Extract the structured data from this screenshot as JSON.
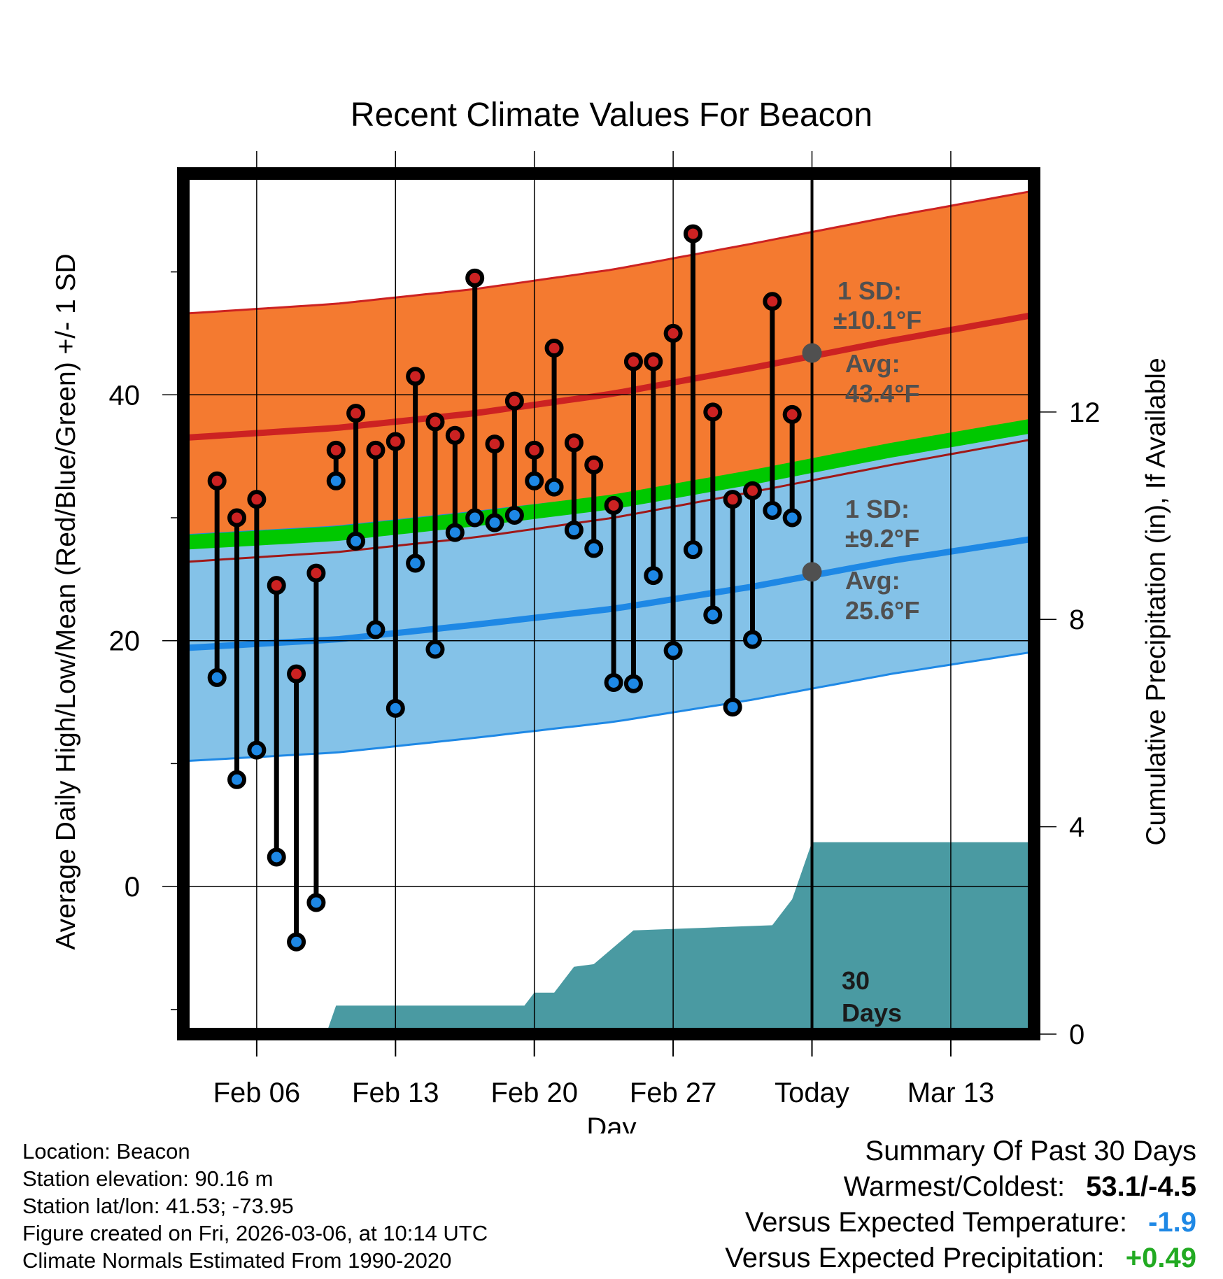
{
  "colors": {
    "high_band": "#f47a30",
    "low_band": "#84c2e8",
    "mean_band": "#00c800",
    "high_line": "#cc2222",
    "low_line": "#1e88e5",
    "precip_fill": "#4a9aa2",
    "high_dot": "#cc2222",
    "low_dot": "#1e88e5",
    "annotation": "#505050",
    "temp_diff": "#1e88e5",
    "precip_diff": "#22aa22"
  },
  "chart_data": {
    "type": "line",
    "title": "Recent Climate Values For Beacon",
    "xlabel": "Day",
    "ylabel": "Average Daily High/Low/Mean (Red/Blue/Green) +/- 1 SD",
    "y2label": "Cumulative Precipitation (in), If Available",
    "xlim": [
      -0.7,
      42.2
    ],
    "ylim": [
      -12,
      58
    ],
    "y2lim": [
      0,
      16.6
    ],
    "xticks": [
      {
        "x": 3,
        "label": "Feb 06"
      },
      {
        "x": 10,
        "label": "Feb 13"
      },
      {
        "x": 17,
        "label": "Feb 20"
      },
      {
        "x": 24,
        "label": "Feb 27"
      },
      {
        "x": 31,
        "label": "Today"
      },
      {
        "x": 38,
        "label": "Mar 13"
      }
    ],
    "yticks_labeled": [
      0,
      20,
      40
    ],
    "yticks_minor": [
      -10,
      10,
      30,
      50
    ],
    "y2ticks": [
      0,
      4,
      8,
      12
    ],
    "today_x": 31,
    "today_label": "30 Days",
    "normals": {
      "x": [
        -0.7,
        7,
        14,
        21,
        28,
        35,
        42.2
      ],
      "high_avg": [
        36.5,
        37.3,
        38.5,
        40.1,
        42.2,
        44.4,
        46.5
      ],
      "high_sd": 10.1,
      "low_avg": [
        19.4,
        20.1,
        21.3,
        22.6,
        24.4,
        26.5,
        28.3
      ],
      "low_sd": 9.2,
      "mean_avg": [
        28.0,
        28.7,
        29.9,
        31.3,
        33.3,
        35.5,
        37.5
      ],
      "mean_halfwidth": 0.6
    },
    "daily": {
      "x": [
        1,
        2,
        3,
        4,
        5,
        6,
        7,
        8,
        9,
        10,
        11,
        12,
        13,
        14,
        15,
        16,
        17,
        18,
        19,
        20,
        21,
        22,
        23,
        24,
        25,
        26,
        27,
        28,
        29,
        30
      ],
      "high": [
        33.0,
        30.0,
        31.5,
        24.5,
        17.3,
        25.5,
        35.5,
        38.5,
        35.5,
        36.2,
        41.5,
        37.8,
        36.7,
        49.5,
        36.0,
        39.5,
        35.5,
        43.8,
        36.1,
        34.3,
        31.0,
        42.7,
        42.7,
        45.0,
        53.1,
        38.6,
        31.5,
        32.2,
        47.6,
        38.4
      ],
      "low": [
        17.0,
        8.7,
        11.1,
        2.4,
        -4.5,
        -1.3,
        33.0,
        28.1,
        20.9,
        14.5,
        26.3,
        19.3,
        28.8,
        30.0,
        29.6,
        30.2,
        33.0,
        32.5,
        29.0,
        27.5,
        16.6,
        16.5,
        25.3,
        19.2,
        27.4,
        22.1,
        14.6,
        20.1,
        30.6,
        30.0
      ]
    },
    "precip": {
      "x": [
        -0.7,
        6.5,
        7,
        13.5,
        14,
        16.5,
        17,
        18,
        19,
        20,
        22,
        29,
        30,
        31,
        42.2
      ],
      "values": [
        0,
        0,
        0.55,
        0.55,
        0.55,
        0.55,
        0.8,
        0.8,
        1.3,
        1.35,
        2.0,
        2.1,
        2.6,
        3.7,
        3.7
      ]
    },
    "annotations": {
      "high_sd": "1 SD:",
      "high_sd_value": "±10.1°F",
      "high_avg": "Avg:",
      "high_avg_value": "43.4°F",
      "low_sd": "1 SD:",
      "low_sd_value": "±9.2°F",
      "low_avg": "Avg:",
      "low_avg_value": "25.6°F",
      "high_avg_today": 43.4,
      "low_avg_today": 25.6
    }
  },
  "info": {
    "location": "Location: Beacon",
    "elevation": "Station elevation: 90.16 m",
    "latlon": "Station lat/lon: 41.53; -73.95",
    "created": "Figure created on Fri, 2026-03-06, at 10:14 UTC",
    "normals": "Climate Normals Estimated From 1990-2020"
  },
  "summary": {
    "title": "Summary Of Past 30 Days",
    "warm_label": "Warmest/Coldest:",
    "warm_value": "53.1/-4.5",
    "temp_label": "Versus Expected Temperature:",
    "temp_value": "-1.9",
    "precip_label": "Versus Expected Precipitation:",
    "precip_value": "+0.49"
  }
}
